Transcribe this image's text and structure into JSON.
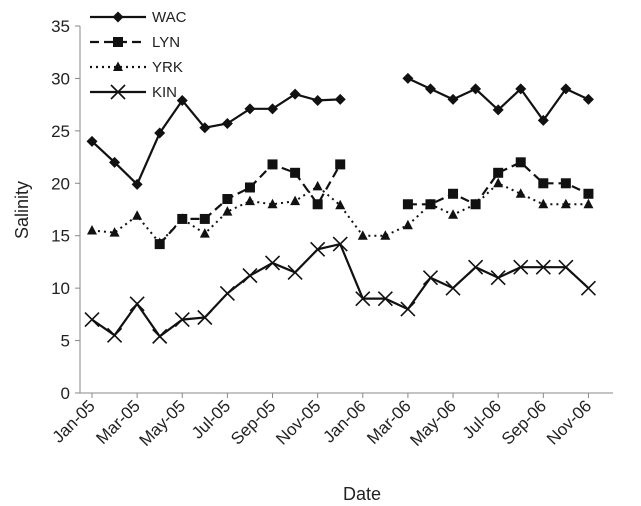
{
  "chart_data": {
    "type": "line",
    "xlabel": "Date",
    "ylabel": "Salinity",
    "ylim": [
      0,
      35
    ],
    "yticks": [
      "0",
      "5",
      "10",
      "15",
      "20",
      "25",
      "30",
      "35"
    ],
    "xlim": [
      "Jan-05",
      "Dec-06"
    ],
    "xticks": [
      "Jan-05",
      "Mar-05",
      "May-05",
      "Jul-05",
      "Sep-05",
      "Nov-05",
      "Jan-06",
      "Mar-06",
      "May-06",
      "Jul-06",
      "Sep-06",
      "Nov-06"
    ],
    "grid": false,
    "legend_position": "top-left",
    "series": [
      {
        "name": "WAC",
        "line_style": "solid",
        "marker": "diamond",
        "points": [
          [
            "Jan-05",
            24.0
          ],
          [
            "Feb-05",
            22.0
          ],
          [
            "Mar-05",
            19.9
          ],
          [
            "Apr-05",
            24.8
          ],
          [
            "May-05",
            27.9
          ],
          [
            "Jun-05",
            25.3
          ],
          [
            "Jul-05",
            25.7
          ],
          [
            "Aug-05",
            27.1
          ],
          [
            "Sep-05",
            27.1
          ],
          [
            "Oct-05",
            28.5
          ],
          [
            "Nov-05",
            27.9
          ],
          [
            "Dec-05",
            28.0
          ],
          [
            "Mar-06",
            30.0
          ],
          [
            "Apr-06",
            29.0
          ],
          [
            "May-06",
            28.0
          ],
          [
            "Jun-06",
            29.0
          ],
          [
            "Jul-06",
            27.0
          ],
          [
            "Aug-06",
            29.0
          ],
          [
            "Sep-06",
            26.0
          ],
          [
            "Oct-06",
            29.0
          ],
          [
            "Nov-06",
            28.0
          ]
        ]
      },
      {
        "name": "LYN",
        "line_style": "dashed",
        "marker": "square",
        "points": [
          [
            "Apr-05",
            14.2
          ],
          [
            "May-05",
            16.6
          ],
          [
            "Jun-05",
            16.6
          ],
          [
            "Jul-05",
            18.5
          ],
          [
            "Aug-05",
            19.6
          ],
          [
            "Sep-05",
            21.8
          ],
          [
            "Oct-05",
            21.0
          ],
          [
            "Nov-05",
            18.0
          ],
          [
            "Dec-05",
            21.8
          ],
          [
            "Mar-06",
            18.0
          ],
          [
            "Apr-06",
            18.0
          ],
          [
            "May-06",
            19.0
          ],
          [
            "Jun-06",
            18.0
          ],
          [
            "Jul-06",
            21.0
          ],
          [
            "Aug-06",
            22.0
          ],
          [
            "Sep-06",
            20.0
          ],
          [
            "Oct-06",
            20.0
          ],
          [
            "Nov-06",
            19.0
          ]
        ]
      },
      {
        "name": "YRK",
        "line_style": "dotted",
        "marker": "triangle",
        "points": [
          [
            "Jan-05",
            15.5
          ],
          [
            "Feb-05",
            15.3
          ],
          [
            "Mar-05",
            16.9
          ],
          [
            "Apr-05",
            14.3
          ],
          [
            "May-05",
            16.6
          ],
          [
            "Jun-05",
            15.2
          ],
          [
            "Jul-05",
            17.3
          ],
          [
            "Aug-05",
            18.3
          ],
          [
            "Sep-05",
            18.0
          ],
          [
            "Oct-05",
            18.3
          ],
          [
            "Nov-05",
            19.7
          ],
          [
            "Dec-05",
            17.9
          ],
          [
            "Jan-06",
            15.0
          ],
          [
            "Feb-06",
            15.0
          ],
          [
            "Mar-06",
            16.0
          ],
          [
            "Apr-06",
            18.0
          ],
          [
            "May-06",
            17.0
          ],
          [
            "Jun-06",
            18.0
          ],
          [
            "Jul-06",
            20.0
          ],
          [
            "Aug-06",
            19.0
          ],
          [
            "Sep-06",
            18.0
          ],
          [
            "Oct-06",
            18.0
          ],
          [
            "Nov-06",
            18.0
          ]
        ]
      },
      {
        "name": "KIN",
        "line_style": "solid",
        "marker": "x",
        "points": [
          [
            "Jan-05",
            7.0
          ],
          [
            "Feb-05",
            5.5
          ],
          [
            "Mar-05",
            8.5
          ],
          [
            "Apr-05",
            5.4
          ],
          [
            "May-05",
            7.0
          ],
          [
            "Jun-05",
            7.2
          ],
          [
            "Jul-05",
            9.5
          ],
          [
            "Aug-05",
            11.2
          ],
          [
            "Sep-05",
            12.4
          ],
          [
            "Oct-05",
            11.5
          ],
          [
            "Nov-05",
            13.7
          ],
          [
            "Dec-05",
            14.2
          ],
          [
            "Jan-06",
            9.0
          ],
          [
            "Feb-06",
            9.0
          ],
          [
            "Mar-06",
            8.0
          ],
          [
            "Apr-06",
            11.0
          ],
          [
            "May-06",
            10.0
          ],
          [
            "Jun-06",
            12.0
          ],
          [
            "Jul-06",
            11.0
          ],
          [
            "Aug-06",
            12.0
          ],
          [
            "Sep-06",
            12.0
          ],
          [
            "Oct-06",
            12.0
          ],
          [
            "Nov-06",
            10.0
          ]
        ]
      }
    ]
  }
}
